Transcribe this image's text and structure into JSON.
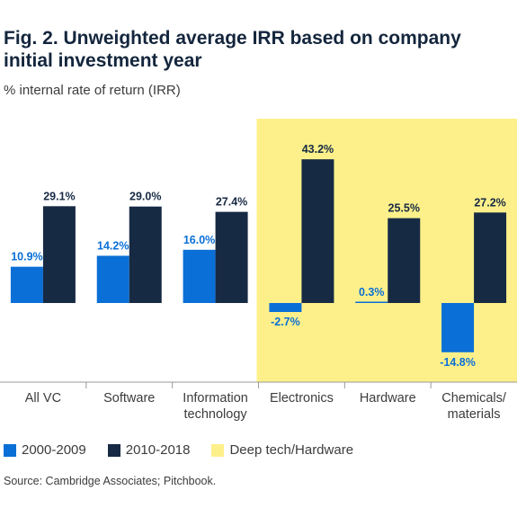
{
  "header": {
    "title": "Fig. 2. Unweighted average IRR based on company initial investment year",
    "subtitle": "% internal rate of return (IRR)"
  },
  "legend": {
    "items": [
      {
        "label": "2000-2009",
        "color": "#0a6fd6"
      },
      {
        "label": "2010-2018",
        "color": "#172a44"
      },
      {
        "label": "Deep tech/Hardware",
        "color": "#fdf08a"
      }
    ]
  },
  "footer": {
    "source": "Source: Cambridge Associates; Pitchbook."
  },
  "chart_data": {
    "type": "bar",
    "title": "Fig. 2. Unweighted average IRR based on company initial investment year",
    "subtitle": "% internal rate of return (IRR)",
    "categories": [
      [
        "All VC"
      ],
      [
        "Software"
      ],
      [
        "Information",
        "technology"
      ],
      [
        "Electronics"
      ],
      [
        "Hardware"
      ],
      [
        "Chemicals/",
        "materials"
      ]
    ],
    "series": [
      {
        "name": "2000-2009",
        "color": "#0a6fd6",
        "label_color": "#0a6fd6",
        "values": [
          10.9,
          14.2,
          16.0,
          -2.7,
          0.3,
          -14.8
        ],
        "labels": [
          "10.9%",
          "14.2%",
          "16.0%",
          "-2.7%",
          "0.3%",
          "-14.8%"
        ]
      },
      {
        "name": "2010-2018",
        "color": "#172a44",
        "label_color": "#172a44",
        "values": [
          29.1,
          29.0,
          27.4,
          43.2,
          25.5,
          27.2
        ],
        "labels": [
          "29.1%",
          "29.0%",
          "27.4%",
          "43.2%",
          "25.5%",
          "27.2%"
        ]
      }
    ],
    "highlight": {
      "label": "Deep tech/Hardware",
      "color": "#fdf08a",
      "categories": [
        3,
        4,
        5
      ]
    },
    "ylim": [
      -15,
      43.2
    ],
    "grid": false,
    "legend": "bottom",
    "xlabel": "",
    "ylabel": "",
    "source": "Source: Cambridge Associates; Pitchbook."
  }
}
